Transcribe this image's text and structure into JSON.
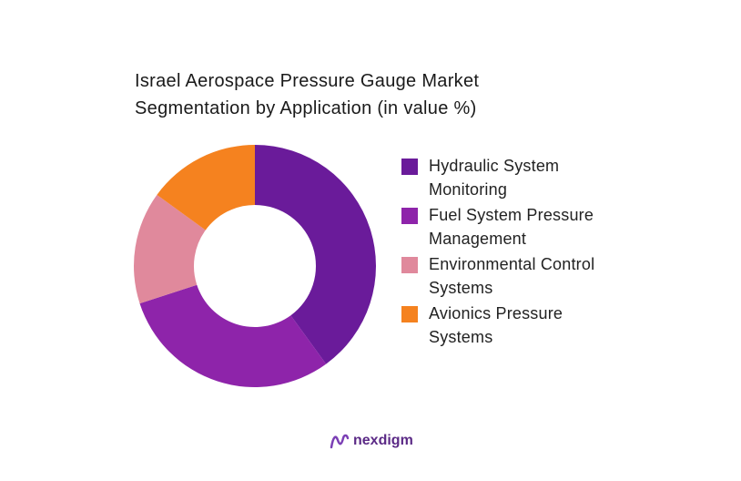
{
  "chart_data": {
    "type": "donut",
    "title": "Israel Aerospace Pressure Gauge Market Segmentation by Application (in value %)",
    "categories": [
      "Hydraulic System Monitoring",
      "Fuel System Pressure Management",
      "Environmental Control Systems",
      "Avionics Pressure Systems"
    ],
    "values": [
      40,
      30,
      15,
      15
    ],
    "colors": [
      "#6a1b9a",
      "#8e24aa",
      "#e0899c",
      "#f5821f"
    ]
  },
  "footer": {
    "brand": "nexdigm"
  }
}
